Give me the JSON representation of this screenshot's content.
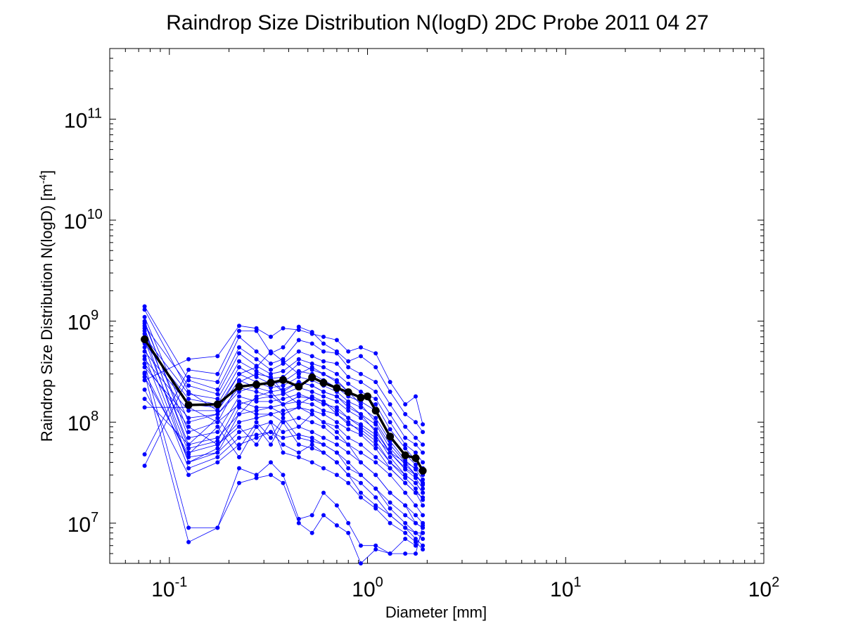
{
  "chart_data": {
    "type": "line",
    "title": "Raindrop Size Distribution N(logD) 2DC Probe 2011 04 27",
    "xlabel": "Diameter [mm]",
    "ylabel_main": "Raindrop Size Distribution N(logD) [m",
    "ylabel_exp": "-4",
    "ylabel_close": "]",
    "xscale": "log",
    "yscale": "log",
    "xlim": [
      0.05,
      100
    ],
    "ylim": [
      4000000,
      500000000000
    ],
    "grid": false,
    "x_tick_labels": [
      {
        "base": "10",
        "exp": "-1",
        "value": 0.1
      },
      {
        "base": "10",
        "exp": "0",
        "value": 1
      },
      {
        "base": "10",
        "exp": "1",
        "value": 10
      },
      {
        "base": "10",
        "exp": "2",
        "value": 100
      }
    ],
    "y_tick_labels": [
      {
        "base": "10",
        "exp": "7",
        "value": 10000000
      },
      {
        "base": "10",
        "exp": "8",
        "value": 100000000
      },
      {
        "base": "10",
        "exp": "9",
        "value": 1000000000
      },
      {
        "base": "10",
        "exp": "10",
        "value": 10000000000
      },
      {
        "base": "10",
        "exp": "11",
        "value": 100000000000
      }
    ],
    "x": [
      0.075,
      0.125,
      0.175,
      0.225,
      0.275,
      0.325,
      0.375,
      0.45,
      0.525,
      0.6,
      0.7,
      0.8,
      0.925,
      1.1,
      1.3,
      1.55,
      1.75,
      1.9
    ],
    "colors": {
      "individual": "#0000ff",
      "mean": "#000000"
    },
    "individual_series": [
      [
        310000000,
        45000000,
        50000000,
        120000000,
        180000000,
        200000000,
        150000000,
        90000000,
        120000000,
        100000000,
        80000000,
        60000000,
        40000000,
        30000000,
        20000000,
        15000000,
        10000000,
        9000000
      ],
      [
        210000000,
        30000000,
        40000000,
        60000000,
        70000000,
        80000000,
        60000000,
        50000000,
        60000000,
        50000000,
        40000000,
        30000000,
        20000000,
        15000000,
        12000000,
        9000000,
        8000000,
        8000000
      ],
      [
        140000000,
        140000000,
        100000000,
        250000000,
        300000000,
        280000000,
        200000000,
        150000000,
        180000000,
        160000000,
        120000000,
        100000000,
        80000000,
        60000000,
        40000000,
        30000000,
        25000000,
        20000000
      ],
      [
        1300000000,
        200000000,
        130000000,
        300000000,
        350000000,
        500000000,
        400000000,
        300000000,
        350000000,
        300000000,
        250000000,
        200000000,
        150000000,
        100000000,
        60000000,
        40000000,
        30000000,
        25000000
      ],
      [
        1100000000,
        100000000,
        120000000,
        200000000,
        230000000,
        250000000,
        200000000,
        250000000,
        230000000,
        200000000,
        180000000,
        150000000,
        120000000,
        80000000,
        50000000,
        35000000,
        30000000,
        25000000
      ],
      [
        950000000,
        80000000,
        100000000,
        150000000,
        170000000,
        180000000,
        150000000,
        180000000,
        170000000,
        160000000,
        130000000,
        110000000,
        90000000,
        70000000,
        50000000,
        40000000,
        35000000,
        30000000
      ],
      [
        800000000,
        60000000,
        70000000,
        120000000,
        130000000,
        140000000,
        120000000,
        140000000,
        120000000,
        100000000,
        90000000,
        70000000,
        60000000,
        45000000,
        35000000,
        25000000,
        20000000,
        18000000
      ],
      [
        650000000,
        50000000,
        60000000,
        100000000,
        110000000,
        120000000,
        100000000,
        110000000,
        100000000,
        90000000,
        70000000,
        60000000,
        50000000,
        40000000,
        30000000,
        20000000,
        15000000,
        12000000
      ],
      [
        550000000,
        40000000,
        50000000,
        80000000,
        90000000,
        100000000,
        80000000,
        90000000,
        80000000,
        70000000,
        60000000,
        50000000,
        40000000,
        30000000,
        20000000,
        15000000,
        12000000,
        10000000
      ],
      [
        450000000,
        35000000,
        45000000,
        70000000,
        75000000,
        80000000,
        70000000,
        75000000,
        70000000,
        60000000,
        50000000,
        40000000,
        30000000,
        22000000,
        16000000,
        12000000,
        10000000,
        9000000
      ],
      [
        380000000,
        9000000,
        9000000,
        35000000,
        30000000,
        40000000,
        30000000,
        11000000,
        12000000,
        20000000,
        15000000,
        10000000,
        6000000,
        6000000,
        5000000,
        7000000,
        6000000,
        8000000
      ],
      [
        300000000,
        6500000,
        9000000,
        25000000,
        28000000,
        30000000,
        25000000,
        10000000,
        8000000,
        12000000,
        9500000,
        8000000,
        4000000,
        5500000,
        5000000,
        5000000,
        5000000,
        9500000
      ],
      [
        260000000,
        420000000,
        450000000,
        900000000,
        850000000,
        700000000,
        850000000,
        820000000,
        750000000,
        700000000,
        650000000,
        500000000,
        550000000,
        480000000,
        250000000,
        150000000,
        180000000,
        95000000
      ],
      [
        48000000,
        330000000,
        300000000,
        800000000,
        800000000,
        480000000,
        550000000,
        880000000,
        780000000,
        600000000,
        500000000,
        400000000,
        450000000,
        350000000,
        200000000,
        120000000,
        100000000,
        80000000
      ],
      [
        37000000,
        280000000,
        250000000,
        700000000,
        500000000,
        380000000,
        420000000,
        650000000,
        600000000,
        500000000,
        480000000,
        350000000,
        300000000,
        250000000,
        150000000,
        90000000,
        70000000,
        60000000
      ],
      [
        1400000000,
        260000000,
        210000000,
        550000000,
        420000000,
        330000000,
        380000000,
        500000000,
        450000000,
        400000000,
        380000000,
        280000000,
        250000000,
        200000000,
        120000000,
        70000000,
        60000000,
        50000000
      ],
      [
        900000000,
        230000000,
        190000000,
        480000000,
        360000000,
        300000000,
        320000000,
        420000000,
        380000000,
        350000000,
        300000000,
        240000000,
        200000000,
        170000000,
        100000000,
        60000000,
        50000000,
        40000000
      ],
      [
        700000000,
        190000000,
        170000000,
        400000000,
        320000000,
        270000000,
        280000000,
        380000000,
        330000000,
        300000000,
        260000000,
        200000000,
        180000000,
        150000000,
        85000000,
        55000000,
        42000000,
        35000000
      ],
      [
        600000000,
        170000000,
        150000000,
        350000000,
        280000000,
        240000000,
        250000000,
        320000000,
        300000000,
        260000000,
        220000000,
        180000000,
        160000000,
        130000000,
        75000000,
        48000000,
        38000000,
        30000000
      ],
      [
        500000000,
        150000000,
        140000000,
        300000000,
        250000000,
        220000000,
        230000000,
        280000000,
        260000000,
        230000000,
        200000000,
        160000000,
        140000000,
        110000000,
        65000000,
        42000000,
        34000000,
        27000000
      ],
      [
        420000000,
        130000000,
        130000000,
        260000000,
        220000000,
        200000000,
        210000000,
        250000000,
        230000000,
        200000000,
        180000000,
        140000000,
        120000000,
        95000000,
        55000000,
        38000000,
        30000000,
        24000000
      ],
      [
        350000000,
        110000000,
        120000000,
        220000000,
        200000000,
        180000000,
        190000000,
        220000000,
        200000000,
        180000000,
        160000000,
        130000000,
        110000000,
        85000000,
        50000000,
        34000000,
        28000000,
        22000000
      ],
      [
        1000000000,
        70000000,
        80000000,
        180000000,
        160000000,
        160000000,
        170000000,
        190000000,
        170000000,
        150000000,
        140000000,
        110000000,
        95000000,
        75000000,
        45000000,
        30000000,
        25000000,
        20000000
      ],
      [
        850000000,
        55000000,
        65000000,
        160000000,
        140000000,
        140000000,
        150000000,
        160000000,
        150000000,
        130000000,
        120000000,
        95000000,
        85000000,
        65000000,
        40000000,
        28000000,
        22000000,
        17000000
      ],
      [
        750000000,
        40000000,
        55000000,
        140000000,
        120000000,
        120000000,
        130000000,
        140000000,
        130000000,
        120000000,
        100000000,
        85000000,
        75000000,
        55000000,
        35000000,
        25000000,
        20000000,
        15000000
      ],
      [
        280000000,
        48000000,
        90000000,
        45000000,
        90000000,
        60000000,
        100000000,
        60000000,
        55000000,
        50000000,
        40000000,
        30000000,
        25000000,
        18000000,
        12000000,
        9000000,
        7000000,
        6000000
      ],
      [
        170000000,
        60000000,
        110000000,
        55000000,
        100000000,
        70000000,
        110000000,
        70000000,
        65000000,
        60000000,
        50000000,
        35000000,
        30000000,
        22000000,
        14000000,
        10000000,
        8000000,
        7000000
      ],
      [
        380000000,
        90000000,
        60000000,
        90000000,
        60000000,
        100000000,
        50000000,
        45000000,
        40000000,
        35000000,
        30000000,
        25000000,
        18000000,
        14000000,
        10000000,
        8000000,
        6500000,
        5500000
      ]
    ],
    "mean_series": [
      660000000,
      148000000,
      150000000,
      225000000,
      235000000,
      245000000,
      262000000,
      225000000,
      278000000,
      245000000,
      218000000,
      198000000,
      175000000,
      180000000,
      130000000,
      72000000,
      47000000,
      44000000,
      33000000
    ],
    "mean_x": [
      0.075,
      0.125,
      0.175,
      0.225,
      0.275,
      0.325,
      0.375,
      0.45,
      0.525,
      0.6,
      0.7,
      0.8,
      0.925,
      1.0,
      1.1,
      1.3,
      1.55,
      1.75,
      1.9
    ]
  }
}
